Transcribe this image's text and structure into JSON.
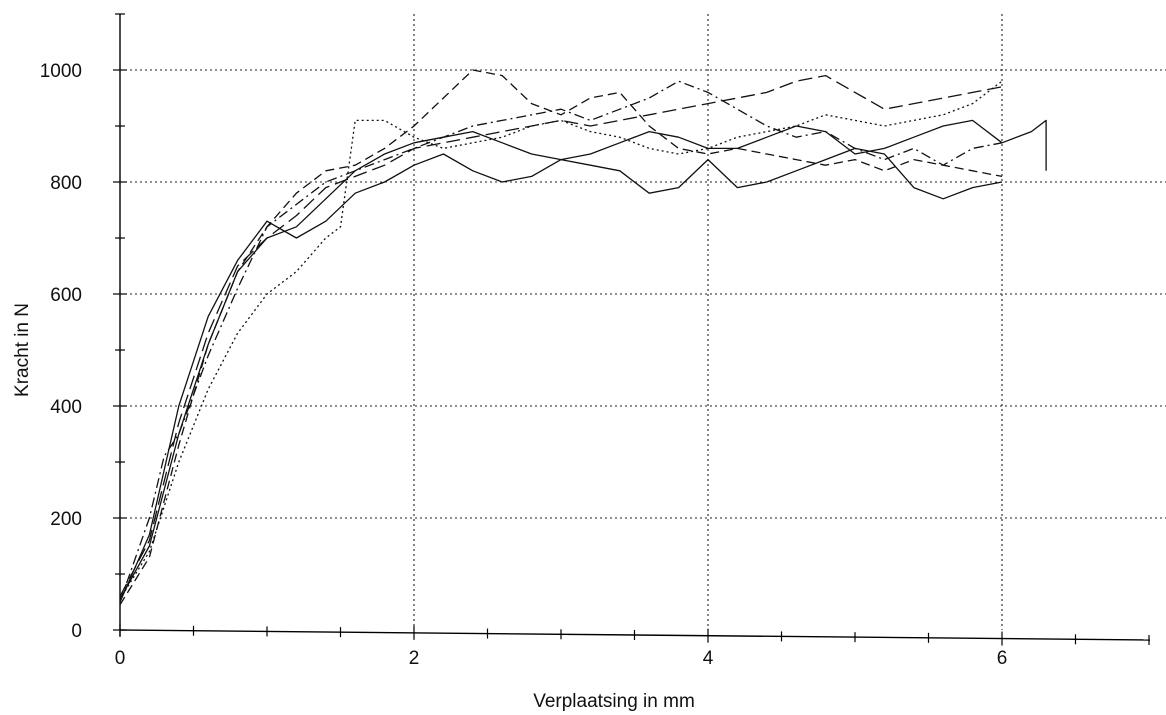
{
  "chart_data": {
    "type": "line",
    "title": "",
    "xlabel": "Verplaatsing in mm",
    "ylabel": "Kracht in N",
    "xlim": [
      0,
      7
    ],
    "ylim": [
      0,
      1100
    ],
    "x_ticks": [
      0,
      2,
      4,
      6
    ],
    "y_ticks": [
      0,
      200,
      400,
      600,
      800,
      1000
    ],
    "grid": "dotted",
    "series": [
      {
        "style": "solid",
        "points": [
          [
            0,
            50
          ],
          [
            0.2,
            170
          ],
          [
            0.4,
            400
          ],
          [
            0.6,
            560
          ],
          [
            0.8,
            660
          ],
          [
            1.0,
            730
          ],
          [
            1.2,
            700
          ],
          [
            1.4,
            730
          ],
          [
            1.6,
            780
          ],
          [
            1.8,
            800
          ],
          [
            2.0,
            830
          ],
          [
            2.2,
            850
          ],
          [
            2.4,
            820
          ],
          [
            2.6,
            800
          ],
          [
            2.8,
            810
          ],
          [
            3.0,
            840
          ],
          [
            3.2,
            830
          ],
          [
            3.4,
            820
          ],
          [
            3.6,
            780
          ],
          [
            3.8,
            790
          ],
          [
            4.0,
            840
          ],
          [
            4.2,
            790
          ],
          [
            4.4,
            800
          ],
          [
            4.6,
            820
          ],
          [
            4.8,
            840
          ],
          [
            5.0,
            860
          ],
          [
            5.2,
            850
          ],
          [
            5.4,
            790
          ],
          [
            5.6,
            770
          ],
          [
            5.8,
            790
          ],
          [
            6.0,
            800
          ]
        ]
      },
      {
        "style": "solid",
        "points": [
          [
            0,
            55
          ],
          [
            0.2,
            150
          ],
          [
            0.4,
            350
          ],
          [
            0.6,
            510
          ],
          [
            0.8,
            640
          ],
          [
            1.0,
            700
          ],
          [
            1.2,
            720
          ],
          [
            1.4,
            770
          ],
          [
            1.6,
            820
          ],
          [
            1.8,
            850
          ],
          [
            2.0,
            870
          ],
          [
            2.2,
            880
          ],
          [
            2.4,
            890
          ],
          [
            2.6,
            870
          ],
          [
            2.8,
            850
          ],
          [
            3.0,
            840
          ],
          [
            3.2,
            850
          ],
          [
            3.4,
            870
          ],
          [
            3.6,
            890
          ],
          [
            3.8,
            880
          ],
          [
            4.0,
            860
          ],
          [
            4.2,
            860
          ],
          [
            4.4,
            880
          ],
          [
            4.6,
            900
          ],
          [
            4.8,
            890
          ],
          [
            5.0,
            850
          ],
          [
            5.2,
            860
          ],
          [
            5.4,
            880
          ],
          [
            5.6,
            900
          ],
          [
            5.8,
            910
          ],
          [
            6.0,
            870
          ],
          [
            6.2,
            890
          ],
          [
            6.3,
            910
          ],
          [
            6.3,
            820
          ]
        ]
      },
      {
        "style": "dashed",
        "points": [
          [
            0,
            45
          ],
          [
            0.2,
            130
          ],
          [
            0.4,
            330
          ],
          [
            0.6,
            510
          ],
          [
            0.8,
            640
          ],
          [
            1.0,
            720
          ],
          [
            1.2,
            780
          ],
          [
            1.4,
            820
          ],
          [
            1.6,
            830
          ],
          [
            1.8,
            860
          ],
          [
            2.0,
            900
          ],
          [
            2.2,
            950
          ],
          [
            2.4,
            1000
          ],
          [
            2.6,
            990
          ],
          [
            2.8,
            940
          ],
          [
            3.0,
            920
          ],
          [
            3.2,
            950
          ],
          [
            3.4,
            960
          ],
          [
            3.6,
            900
          ],
          [
            3.8,
            860
          ],
          [
            4.0,
            850
          ],
          [
            4.2,
            860
          ],
          [
            4.4,
            850
          ],
          [
            4.6,
            840
          ],
          [
            4.8,
            830
          ],
          [
            5.0,
            840
          ],
          [
            5.2,
            820
          ],
          [
            5.4,
            840
          ],
          [
            5.6,
            830
          ],
          [
            5.8,
            820
          ],
          [
            6.0,
            810
          ]
        ]
      },
      {
        "style": "dashdot",
        "points": [
          [
            0,
            50
          ],
          [
            0.2,
            200
          ],
          [
            0.3,
            310
          ],
          [
            0.4,
            350
          ],
          [
            0.6,
            490
          ],
          [
            0.8,
            610
          ],
          [
            1.0,
            720
          ],
          [
            1.2,
            760
          ],
          [
            1.4,
            800
          ],
          [
            1.6,
            820
          ],
          [
            1.8,
            840
          ],
          [
            2.0,
            860
          ],
          [
            2.2,
            880
          ],
          [
            2.4,
            900
          ],
          [
            2.6,
            910
          ],
          [
            2.8,
            920
          ],
          [
            3.0,
            930
          ],
          [
            3.2,
            910
          ],
          [
            3.4,
            930
          ],
          [
            3.6,
            950
          ],
          [
            3.8,
            980
          ],
          [
            4.0,
            960
          ],
          [
            4.2,
            930
          ],
          [
            4.4,
            900
          ],
          [
            4.6,
            880
          ],
          [
            4.8,
            890
          ],
          [
            5.0,
            860
          ],
          [
            5.2,
            840
          ],
          [
            5.4,
            860
          ],
          [
            5.6,
            830
          ],
          [
            5.8,
            860
          ],
          [
            6.0,
            870
          ]
        ]
      },
      {
        "style": "longdash",
        "points": [
          [
            0,
            60
          ],
          [
            0.2,
            160
          ],
          [
            0.4,
            370
          ],
          [
            0.6,
            530
          ],
          [
            0.8,
            650
          ],
          [
            1.0,
            700
          ],
          [
            1.2,
            740
          ],
          [
            1.4,
            790
          ],
          [
            1.6,
            810
          ],
          [
            1.8,
            830
          ],
          [
            2.0,
            860
          ],
          [
            2.2,
            870
          ],
          [
            2.4,
            880
          ],
          [
            2.6,
            890
          ],
          [
            2.8,
            900
          ],
          [
            3.0,
            910
          ],
          [
            3.2,
            900
          ],
          [
            3.4,
            910
          ],
          [
            3.6,
            920
          ],
          [
            3.8,
            930
          ],
          [
            4.0,
            940
          ],
          [
            4.2,
            950
          ],
          [
            4.4,
            960
          ],
          [
            4.6,
            980
          ],
          [
            4.8,
            990
          ],
          [
            5.0,
            960
          ],
          [
            5.2,
            930
          ],
          [
            5.4,
            940
          ],
          [
            5.6,
            950
          ],
          [
            5.8,
            960
          ],
          [
            6.0,
            970
          ]
        ]
      },
      {
        "style": "dotted",
        "points": [
          [
            0,
            55
          ],
          [
            0.2,
            140
          ],
          [
            0.4,
            300
          ],
          [
            0.6,
            430
          ],
          [
            0.8,
            530
          ],
          [
            1.0,
            600
          ],
          [
            1.2,
            640
          ],
          [
            1.4,
            700
          ],
          [
            1.5,
            720
          ],
          [
            1.6,
            910
          ],
          [
            1.8,
            910
          ],
          [
            2.0,
            880
          ],
          [
            2.2,
            860
          ],
          [
            2.4,
            870
          ],
          [
            2.6,
            880
          ],
          [
            2.8,
            900
          ],
          [
            3.0,
            910
          ],
          [
            3.2,
            890
          ],
          [
            3.4,
            880
          ],
          [
            3.6,
            860
          ],
          [
            3.8,
            850
          ],
          [
            4.0,
            860
          ],
          [
            4.2,
            880
          ],
          [
            4.4,
            890
          ],
          [
            4.6,
            900
          ],
          [
            4.8,
            920
          ],
          [
            5.0,
            910
          ],
          [
            5.2,
            900
          ],
          [
            5.4,
            910
          ],
          [
            5.6,
            920
          ],
          [
            5.8,
            940
          ],
          [
            6.0,
            980
          ]
        ]
      }
    ]
  }
}
